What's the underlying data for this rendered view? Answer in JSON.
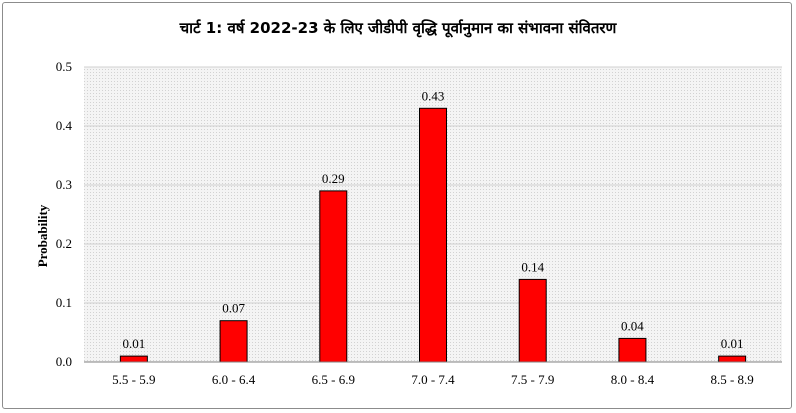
{
  "chart_data": {
    "type": "bar",
    "title": "चार्ट 1: वर्ष 2022-23 के लिए जीडीपी वृद्धि पूर्वानुमान का संभावना संवितरण",
    "xlabel": "",
    "ylabel": "Probability",
    "categories": [
      "5.5 - 5.9",
      "6.0 - 6.4",
      "6.5 - 6.9",
      "7.0 - 7.4",
      "7.5 - 7.9",
      "8.0 - 8.4",
      "8.5 - 8.9"
    ],
    "values": [
      0.01,
      0.07,
      0.29,
      0.43,
      0.14,
      0.04,
      0.01
    ],
    "data_labels": [
      "0.01",
      "0.07",
      "0.29",
      "0.43",
      "0.14",
      "0.04",
      "0.01"
    ],
    "ylim": [
      0,
      0.5
    ],
    "yticks": [
      "0.0",
      "0.1",
      "0.2",
      "0.3",
      "0.4",
      "0.5"
    ],
    "grid": true,
    "legend": "none",
    "colors": {
      "bar": "#ff0000",
      "bar_border": "#000000",
      "plot_background": "#ececec"
    }
  }
}
